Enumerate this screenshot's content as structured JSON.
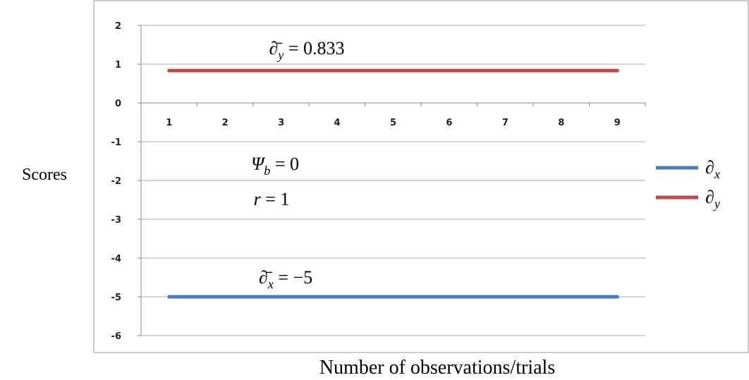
{
  "chart_data": {
    "type": "line",
    "y_label": "Scores",
    "x_label": "Number of observations/trials",
    "categories": [
      "1",
      "2",
      "3",
      "4",
      "5",
      "6",
      "7",
      "8",
      "9"
    ],
    "series": [
      {
        "name": "∂",
        "name_sub": "x",
        "color": "#4a7ebb",
        "values": [
          -5,
          -5,
          -5,
          -5,
          -5,
          -5,
          -5,
          -5,
          -5
        ]
      },
      {
        "name": "∂",
        "name_sub": "y",
        "color": "#be4b48",
        "values": [
          0.833,
          0.833,
          0.833,
          0.833,
          0.833,
          0.833,
          0.833,
          0.833,
          0.833
        ]
      }
    ],
    "annotations": [
      {
        "base": "∂̄",
        "sub": "y",
        "tail": " = 0.833"
      },
      {
        "base": "Ψ",
        "sub": "b",
        "tail": " = 0"
      },
      {
        "base": "r",
        "tail": " = 1"
      },
      {
        "base": "∂̄",
        "sub": "x",
        "tail": " = −5"
      }
    ],
    "ylim": [
      -6,
      2
    ],
    "yticks": [
      -6,
      -5,
      -4,
      -3,
      -2,
      -1,
      0,
      1,
      2
    ],
    "grid": true
  }
}
